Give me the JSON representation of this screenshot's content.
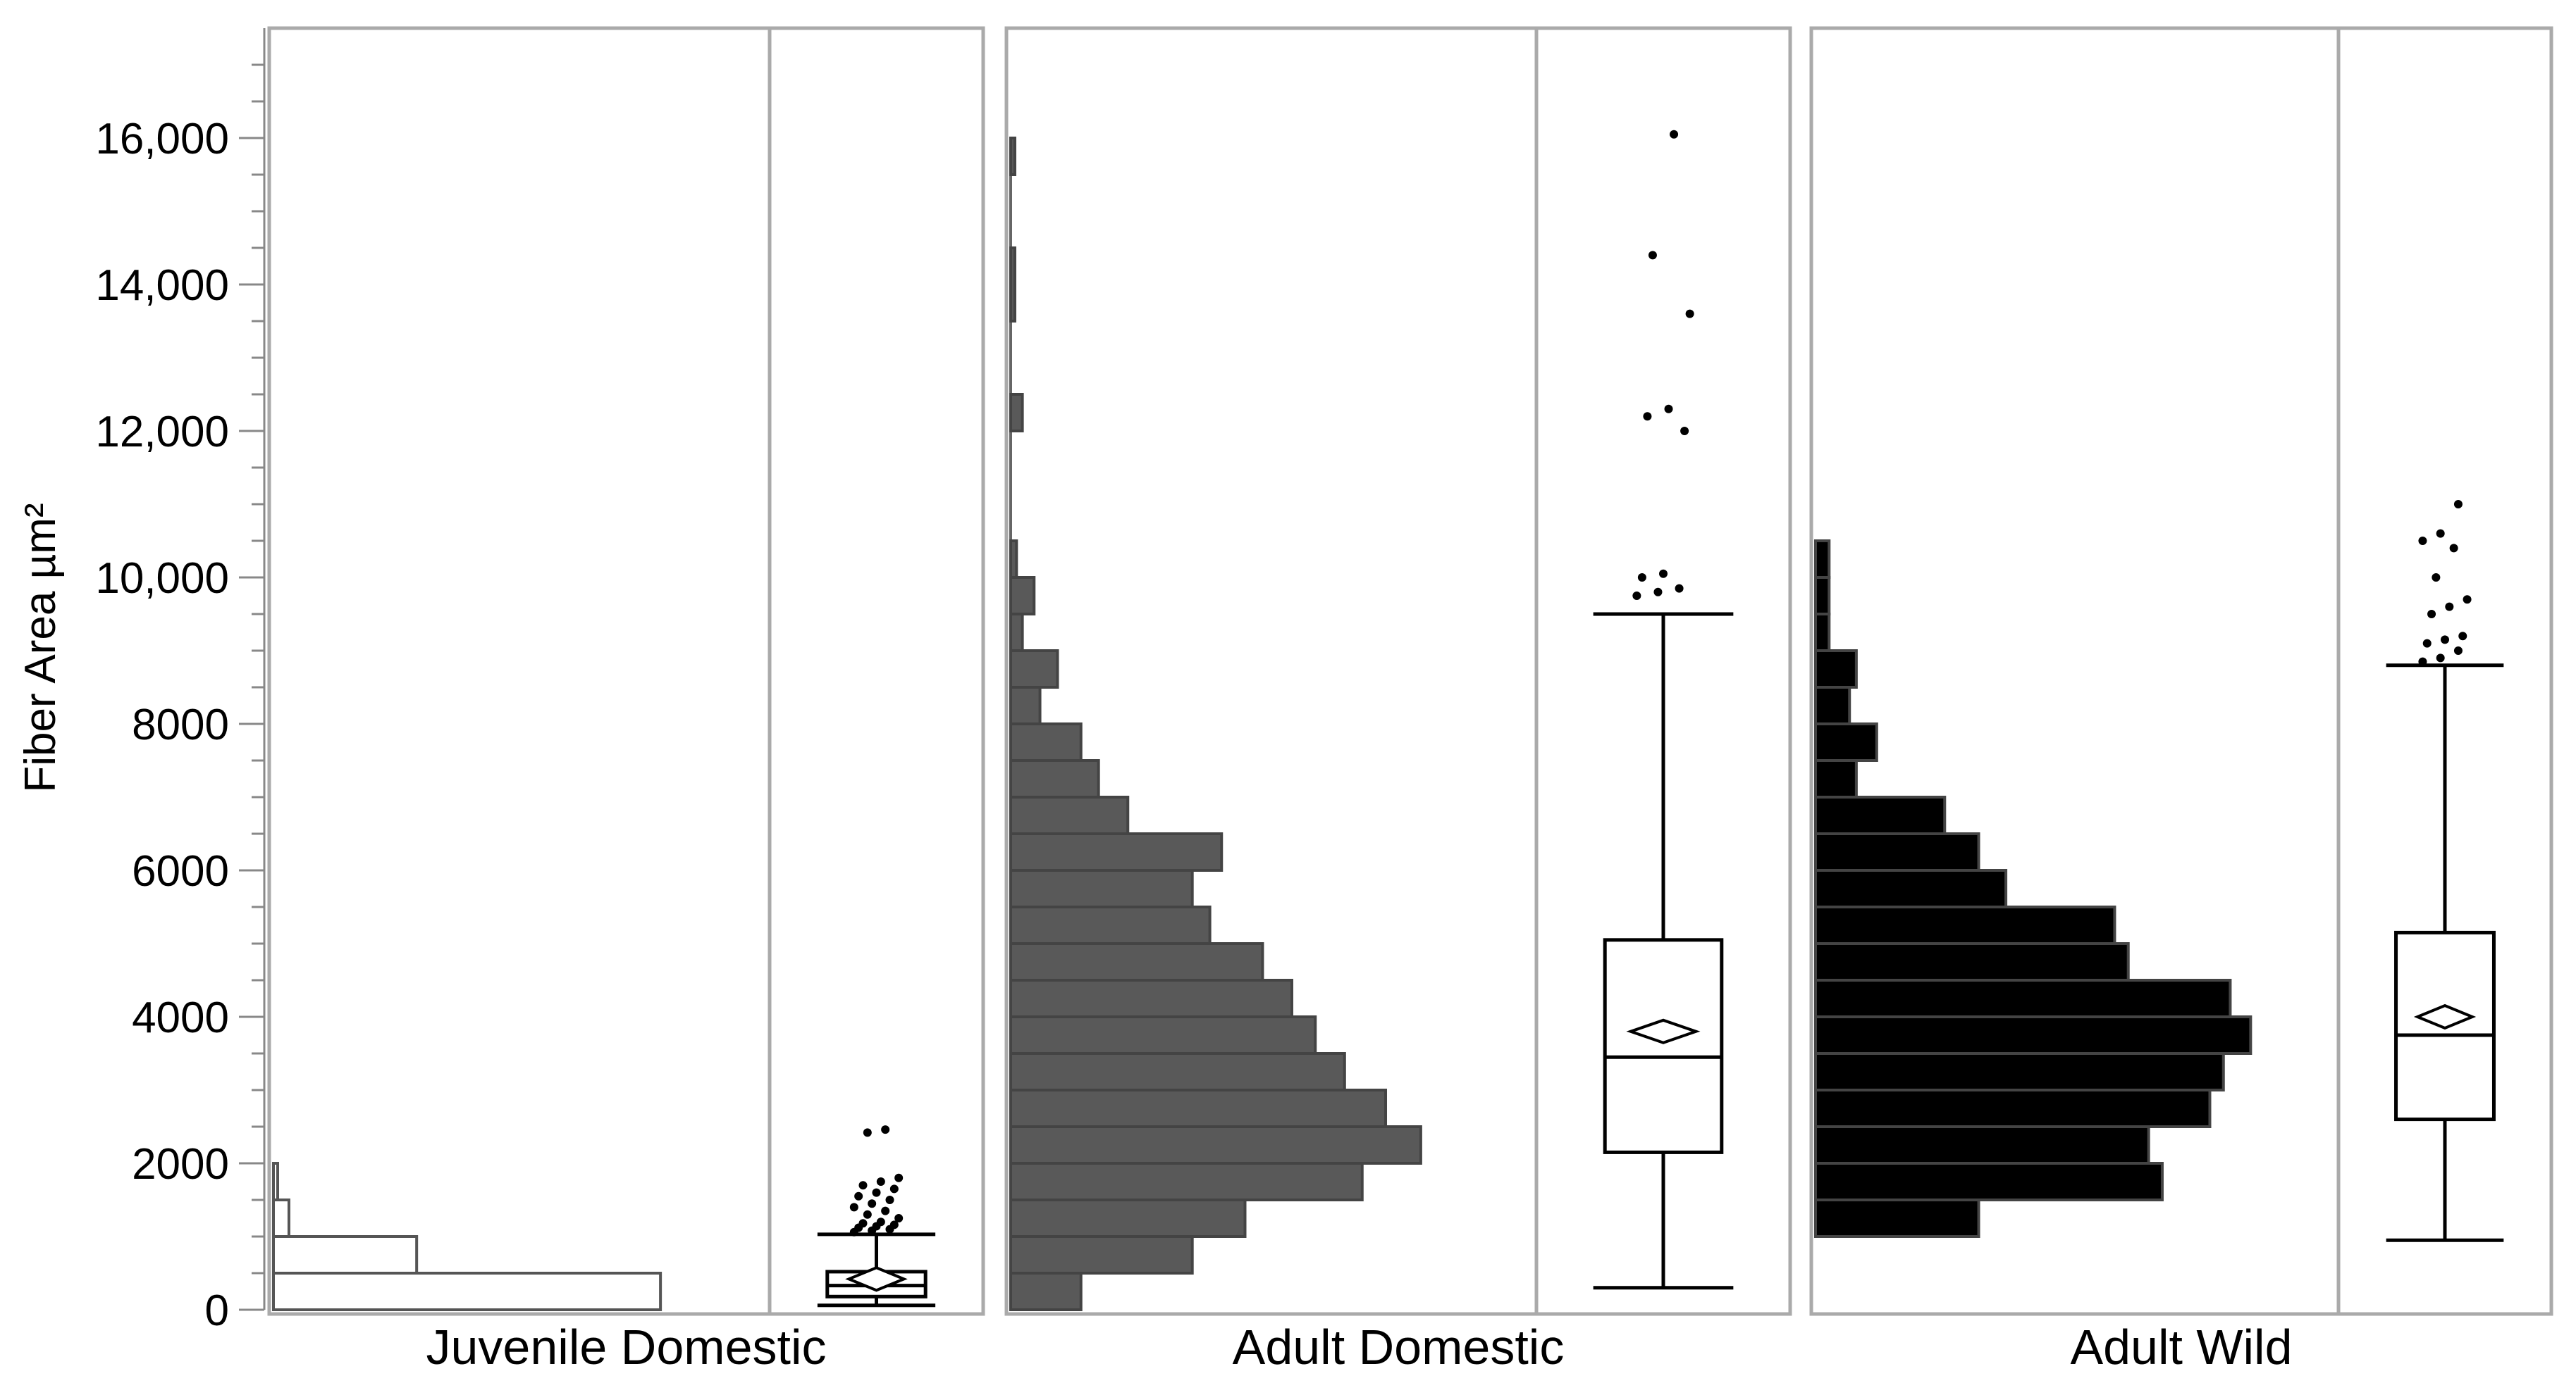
{
  "chart_data": {
    "type": "histogram-boxplot",
    "ylabel": "Fiber Area µm²",
    "ylim": [
      0,
      17500
    ],
    "yticks": [
      {
        "value": 0,
        "label": "0"
      },
      {
        "value": 2000,
        "label": "2000"
      },
      {
        "value": 4000,
        "label": "4000"
      },
      {
        "value": 6000,
        "label": "6000"
      },
      {
        "value": 8000,
        "label": "8000"
      },
      {
        "value": 10000,
        "label": "10,000"
      },
      {
        "value": 12000,
        "label": "12,000"
      },
      {
        "value": 14000,
        "label": "14,000"
      },
      {
        "value": 16000,
        "label": "16,000"
      }
    ],
    "groups": [
      {
        "name": "Juvenile Domestic",
        "color": "#ffffff",
        "stroke": "#555555",
        "hist_max": 1000,
        "bins": [
          {
            "y0": 0,
            "y1": 500,
            "count": 1000
          },
          {
            "y0": 500,
            "y1": 1000,
            "count": 370
          },
          {
            "y0": 1000,
            "y1": 1500,
            "count": 40
          },
          {
            "y0": 1500,
            "y1": 2000,
            "count": 8
          }
        ],
        "box": {
          "min": 60,
          "q1": 180,
          "median": 330,
          "q3": 520,
          "max": 1030,
          "mean": 420
        },
        "outliers": [
          1060,
          1080,
          1100,
          1120,
          1140,
          1160,
          1180,
          1200,
          1250,
          1300,
          1350,
          1400,
          1450,
          1500,
          1550,
          1600,
          1650,
          1700,
          1750,
          1800,
          2420,
          2460
        ]
      },
      {
        "name": "Adult Domestic",
        "color": "#595959",
        "stroke": "#444444",
        "hist_max": 70,
        "bins": [
          {
            "y0": 0,
            "y1": 500,
            "count": 12
          },
          {
            "y0": 500,
            "y1": 1000,
            "count": 31
          },
          {
            "y0": 1000,
            "y1": 1500,
            "count": 40
          },
          {
            "y0": 1500,
            "y1": 2000,
            "count": 60
          },
          {
            "y0": 2000,
            "y1": 2500,
            "count": 70
          },
          {
            "y0": 2500,
            "y1": 3000,
            "count": 64
          },
          {
            "y0": 3000,
            "y1": 3500,
            "count": 57
          },
          {
            "y0": 3500,
            "y1": 4000,
            "count": 52
          },
          {
            "y0": 4000,
            "y1": 4500,
            "count": 48
          },
          {
            "y0": 4500,
            "y1": 5000,
            "count": 43
          },
          {
            "y0": 5000,
            "y1": 5500,
            "count": 34
          },
          {
            "y0": 5500,
            "y1": 6000,
            "count": 31
          },
          {
            "y0": 6000,
            "y1": 6500,
            "count": 36
          },
          {
            "y0": 6500,
            "y1": 7000,
            "count": 20
          },
          {
            "y0": 7000,
            "y1": 7500,
            "count": 15
          },
          {
            "y0": 7500,
            "y1": 8000,
            "count": 12
          },
          {
            "y0": 8000,
            "y1": 8500,
            "count": 5
          },
          {
            "y0": 8500,
            "y1": 9000,
            "count": 8
          },
          {
            "y0": 9000,
            "y1": 9500,
            "count": 2
          },
          {
            "y0": 9500,
            "y1": 10000,
            "count": 4
          },
          {
            "y0": 10000,
            "y1": 10500,
            "count": 1
          },
          {
            "y0": 12000,
            "y1": 12500,
            "count": 2
          },
          {
            "y0": 13500,
            "y1": 14500,
            "count": 0.6
          },
          {
            "y0": 15500,
            "y1": 16000,
            "count": 0.6
          }
        ],
        "box": {
          "min": 300,
          "q1": 2150,
          "median": 3450,
          "q3": 5050,
          "max": 9500,
          "mean": 3800
        },
        "outliers": [
          9750,
          9800,
          9850,
          10000,
          10050,
          12000,
          12200,
          12300,
          13600,
          14400,
          16050
        ]
      },
      {
        "name": "Adult Wild",
        "color": "#000000",
        "stroke": "#444444",
        "hist_max": 60,
        "bins": [
          {
            "y0": 1000,
            "y1": 1500,
            "count": 24
          },
          {
            "y0": 1500,
            "y1": 2000,
            "count": 51
          },
          {
            "y0": 2000,
            "y1": 2500,
            "count": 49
          },
          {
            "y0": 2500,
            "y1": 3000,
            "count": 58
          },
          {
            "y0": 3000,
            "y1": 3500,
            "count": 60
          },
          {
            "y0": 3500,
            "y1": 4000,
            "count": 64
          },
          {
            "y0": 4000,
            "y1": 4500,
            "count": 61
          },
          {
            "y0": 4500,
            "y1": 5000,
            "count": 46
          },
          {
            "y0": 5000,
            "y1": 5500,
            "count": 44
          },
          {
            "y0": 5500,
            "y1": 6000,
            "count": 28
          },
          {
            "y0": 6000,
            "y1": 6500,
            "count": 24
          },
          {
            "y0": 6500,
            "y1": 7000,
            "count": 19
          },
          {
            "y0": 7000,
            "y1": 7500,
            "count": 6
          },
          {
            "y0": 7500,
            "y1": 8000,
            "count": 9
          },
          {
            "y0": 8000,
            "y1": 8500,
            "count": 5
          },
          {
            "y0": 8500,
            "y1": 9000,
            "count": 6
          },
          {
            "y0": 9000,
            "y1": 9500,
            "count": 2
          },
          {
            "y0": 9500,
            "y1": 10000,
            "count": 2
          },
          {
            "y0": 10000,
            "y1": 10500,
            "count": 2
          }
        ],
        "box": {
          "min": 950,
          "q1": 2600,
          "median": 3750,
          "q3": 5150,
          "max": 8800,
          "mean": 4000
        },
        "outliers": [
          8850,
          8900,
          9000,
          9100,
          9150,
          9200,
          9500,
          9600,
          9700,
          10000,
          10400,
          10500,
          10600,
          11000
        ]
      }
    ]
  }
}
